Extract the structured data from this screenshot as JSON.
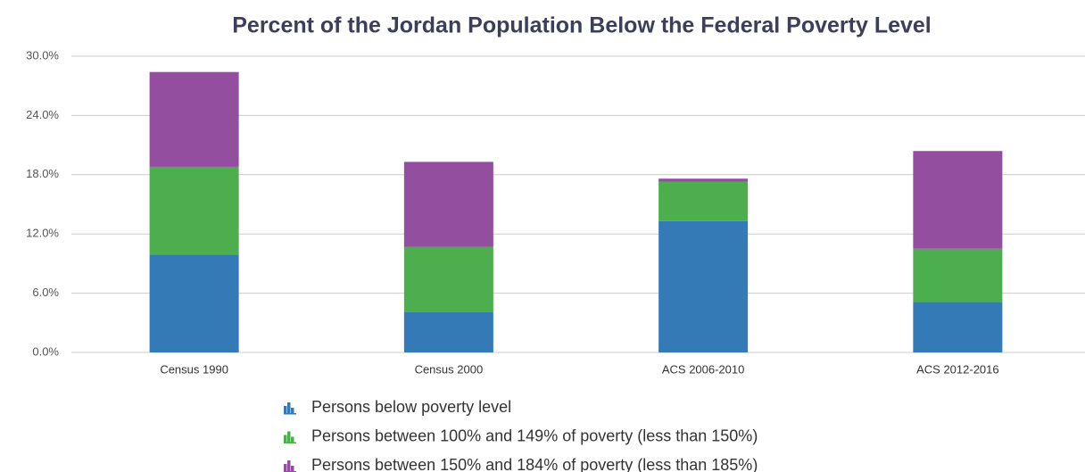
{
  "chart_data": {
    "type": "stacked_bar",
    "title": "Percent of the Jordan Population Below the Federal Poverty Level",
    "categories": [
      "Census 1990",
      "Census 2000",
      "ACS 2006-2010",
      "ACS 2012-2016"
    ],
    "series": [
      {
        "name": "Persons below poverty level",
        "color": "#337ab7",
        "values": [
          9.9,
          4.1,
          13.3,
          5.1
        ]
      },
      {
        "name": "Persons between 100% and 149% of poverty (less than 150%)",
        "color": "#4cae4c",
        "values": [
          8.9,
          6.6,
          4.0,
          5.4
        ]
      },
      {
        "name": "Persons between 150% and 184% of poverty (less than 185%)",
        "color": "#934ea0",
        "values": [
          9.6,
          8.6,
          0.3,
          9.9
        ]
      }
    ],
    "ylim": [
      0,
      30
    ],
    "yticks": [
      {
        "value": 0,
        "label": "0.0%"
      },
      {
        "value": 6,
        "label": "6.0%"
      },
      {
        "value": 12,
        "label": "12.0%"
      },
      {
        "value": 18,
        "label": "18.0%"
      },
      {
        "value": 24,
        "label": "24.0%"
      },
      {
        "value": 30,
        "label": "30.0%"
      }
    ],
    "grid": true,
    "legend": "bottom"
  }
}
